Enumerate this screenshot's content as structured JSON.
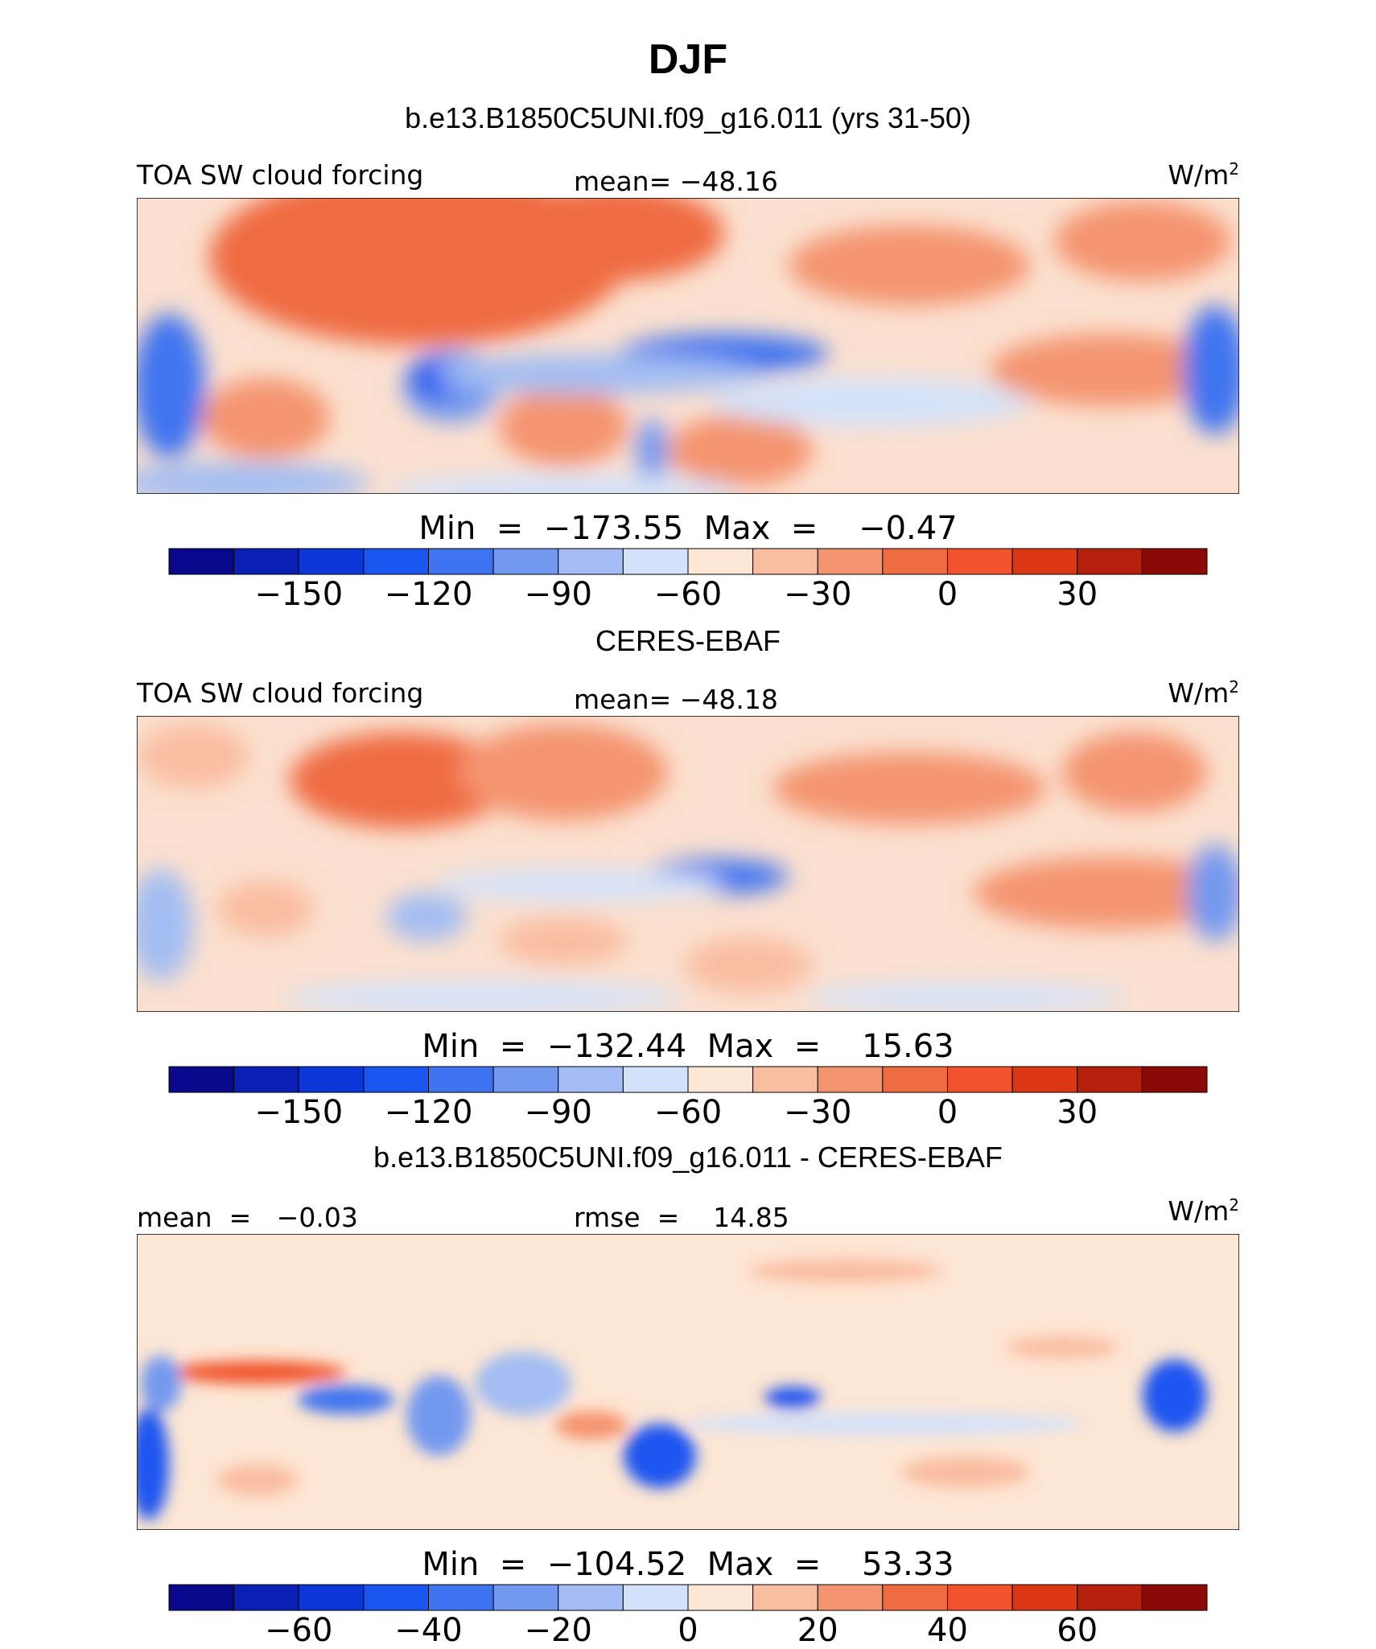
{
  "title": "DJF",
  "colors": {
    "model_scale": [
      "#08088c",
      "#0a1fb3",
      "#0d38d9",
      "#1a55f0",
      "#3f74f0",
      "#7399ef",
      "#a3bdf2",
      "#d3e2fa",
      "#fde6d4",
      "#f9bda0",
      "#f4946f",
      "#ef6c43",
      "#f0522b",
      "#db3712",
      "#b51f0c",
      "#8a0a06"
    ],
    "diff_scale": [
      "#08088c",
      "#0a1fb3",
      "#0d38d9",
      "#1a55f0",
      "#3f74f0",
      "#7399ef",
      "#a3bdf2",
      "#d3e2fa",
      "#fde6d4",
      "#f9bda0",
      "#f4946f",
      "#ef6c43",
      "#f0522b",
      "#db3712",
      "#b51f0c",
      "#8a0a06"
    ]
  },
  "chart_data": [
    {
      "type": "heatmap",
      "panel": "model",
      "subtitle": "b.e13.B1850C5UNI.f09_g16.011 (yrs 31-50)",
      "left_label": "TOA SW cloud forcing",
      "center_label": "mean= −48.16",
      "units": "W/m",
      "units_sup": "2",
      "mean": -48.16,
      "min": -173.55,
      "max": -0.47,
      "minmax_text": "Min  =  −173.55  Max  =    −0.47",
      "colorbar_levels": [
        -165,
        -150,
        -135,
        -120,
        -105,
        -90,
        -75,
        -60,
        -45,
        -30,
        -15,
        0,
        15,
        30,
        45
      ],
      "colorbar_tick_labels": [
        "−150",
        "−120",
        "−90",
        "−60",
        "−30",
        "0",
        "30"
      ],
      "colorbar_tick_values": [
        -150,
        -120,
        -90,
        -60,
        -30,
        0,
        30
      ]
    },
    {
      "type": "heatmap",
      "panel": "obs",
      "subtitle": "CERES-EBAF",
      "left_label": "TOA SW cloud forcing",
      "center_label": "mean= −48.18",
      "units": "W/m",
      "units_sup": "2",
      "mean": -48.18,
      "min": -132.44,
      "max": 15.63,
      "minmax_text": "Min  =  −132.44  Max  =    15.63",
      "colorbar_levels": [
        -165,
        -150,
        -135,
        -120,
        -105,
        -90,
        -75,
        -60,
        -45,
        -30,
        -15,
        0,
        15,
        30,
        45
      ],
      "colorbar_tick_labels": [
        "−150",
        "−120",
        "−90",
        "−60",
        "−30",
        "0",
        "30"
      ],
      "colorbar_tick_values": [
        -150,
        -120,
        -90,
        -60,
        -30,
        0,
        30
      ]
    },
    {
      "type": "heatmap",
      "panel": "diff",
      "subtitle": "b.e13.B1850C5UNI.f09_g16.011 - CERES-EBAF",
      "left_label": "mean  =   −0.03",
      "center_label": "rmse  =    14.85",
      "units": "W/m",
      "units_sup": "2",
      "mean": -0.03,
      "rmse": 14.85,
      "min": -104.52,
      "max": 53.33,
      "minmax_text": "Min  =  −104.52  Max  =    53.33",
      "colorbar_levels": [
        -70,
        -60,
        -50,
        -40,
        -30,
        -20,
        -10,
        0,
        10,
        20,
        30,
        40,
        50,
        60,
        70
      ],
      "colorbar_tick_labels": [
        "−60",
        "−40",
        "−20",
        "0",
        "20",
        "40",
        "60"
      ],
      "colorbar_tick_values": [
        -60,
        -40,
        -20,
        0,
        20,
        40,
        60
      ]
    }
  ]
}
